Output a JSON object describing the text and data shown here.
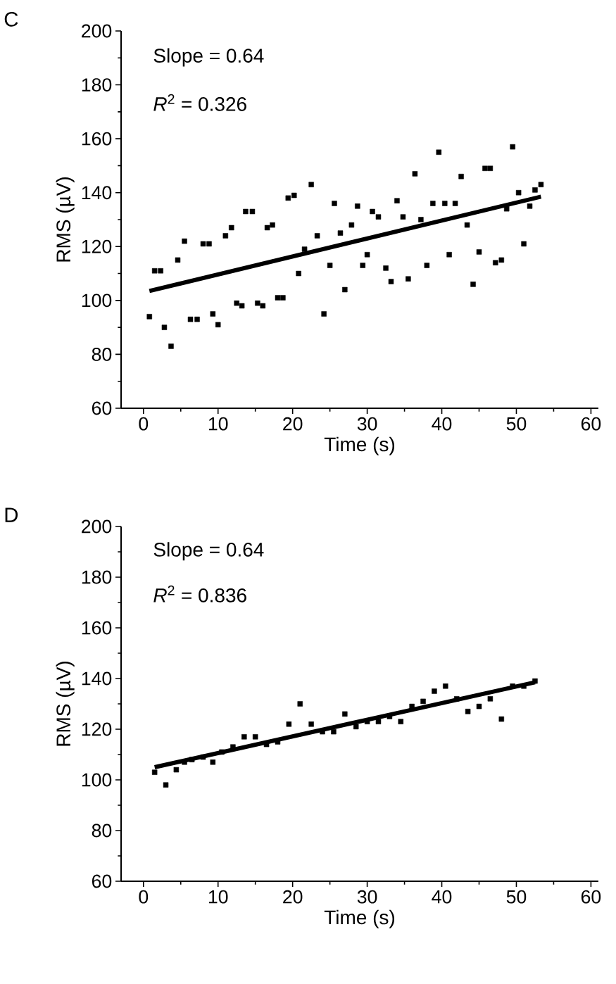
{
  "chart_data": [
    {
      "type": "scatter",
      "title": "C",
      "xlabel": "Time (s)",
      "ylabel": "RMS (µV)",
      "annotations": [
        "Slope = 0.64",
        "*R*$^{2}$ = 0.326"
      ],
      "xlim": [
        -3,
        61
      ],
      "ylim": [
        60,
        200
      ],
      "xticks": [
        0,
        10,
        20,
        30,
        40,
        50,
        60
      ],
      "yticks": [
        60,
        80,
        100,
        120,
        140,
        160,
        180,
        200
      ],
      "marker": "square",
      "grid": false,
      "series": [
        {
          "type": "scatter",
          "color": "#000000",
          "x": [
            0.8,
            1.5,
            2.3,
            2.8,
            3.7,
            4.6,
            5.5,
            6.3,
            7.2,
            8,
            8.8,
            9.3,
            10,
            11,
            11.8,
            12.5,
            13.2,
            13.7,
            14.6,
            15.3,
            16,
            16.6,
            17.3,
            18,
            18.7,
            19.4,
            20.2,
            20.8,
            21.6,
            22.5,
            23.3,
            24.2,
            25,
            25.6,
            26.4,
            27,
            27.9,
            28.7,
            29.4,
            30,
            30.7,
            31.5,
            32.5,
            33.2,
            34,
            34.8,
            35.5,
            36.4,
            37.2,
            38,
            38.8,
            39.6,
            40.4,
            41,
            41.8,
            42.6,
            43.4,
            44.2,
            45,
            45.8,
            46.5,
            47.2,
            48,
            48.7,
            49.5,
            50.3,
            51,
            51.8,
            52.5,
            53.3
          ],
          "values": [
            94,
            111,
            111,
            90,
            83,
            115,
            122,
            93,
            93,
            121,
            121,
            95,
            91,
            124,
            127,
            99,
            98,
            133,
            133,
            99,
            98,
            127,
            128,
            101,
            101,
            138,
            139,
            110,
            119,
            143,
            124,
            95,
            113,
            136,
            125,
            104,
            128,
            135,
            113,
            117,
            133,
            131,
            112,
            107,
            137,
            131,
            108,
            147,
            130,
            113,
            136,
            155,
            136,
            117,
            136,
            146,
            128,
            106,
            118,
            149,
            149,
            114,
            115,
            134,
            157,
            140,
            121,
            135,
            141,
            143
          ]
        },
        {
          "type": "line",
          "color": "#000000",
          "marker": "none",
          "x": [
            0.8,
            53.3
          ],
          "values": [
            103.5,
            138.5
          ]
        }
      ]
    },
    {
      "type": "scatter",
      "title": "D",
      "xlabel": "Time (s)",
      "ylabel": "RMS (µV)",
      "annotations": [
        "Slope = 0.64",
        "*R*$^{2}$ = 0.836"
      ],
      "xlim": [
        -3,
        61
      ],
      "ylim": [
        60,
        200
      ],
      "xticks": [
        0,
        10,
        20,
        30,
        40,
        50,
        60
      ],
      "yticks": [
        60,
        80,
        100,
        120,
        140,
        160,
        180,
        200
      ],
      "marker": "square",
      "grid": false,
      "series": [
        {
          "type": "scatter",
          "color": "#000000",
          "x": [
            1.5,
            3,
            4.4,
            5.5,
            6.5,
            8,
            9.3,
            10.5,
            12,
            13.5,
            15,
            16.5,
            18,
            19.5,
            21,
            22.5,
            24,
            25.5,
            27,
            28.5,
            30,
            31.5,
            33,
            34.5,
            36,
            37.5,
            39,
            40.5,
            42,
            43.5,
            45,
            46.5,
            48,
            49.5,
            51,
            52.5
          ],
          "values": [
            103,
            98,
            104,
            107,
            108,
            109,
            107,
            111,
            113,
            117,
            117,
            114,
            115,
            122,
            130,
            122,
            119,
            119,
            126,
            121,
            123,
            123,
            125,
            123,
            129,
            131,
            135,
            137,
            132,
            127,
            129,
            132,
            124,
            137,
            137,
            139
          ]
        },
        {
          "type": "line",
          "color": "#000000",
          "marker": "none",
          "x": [
            1.5,
            52.5
          ],
          "values": [
            105,
            138.5
          ]
        }
      ]
    }
  ]
}
